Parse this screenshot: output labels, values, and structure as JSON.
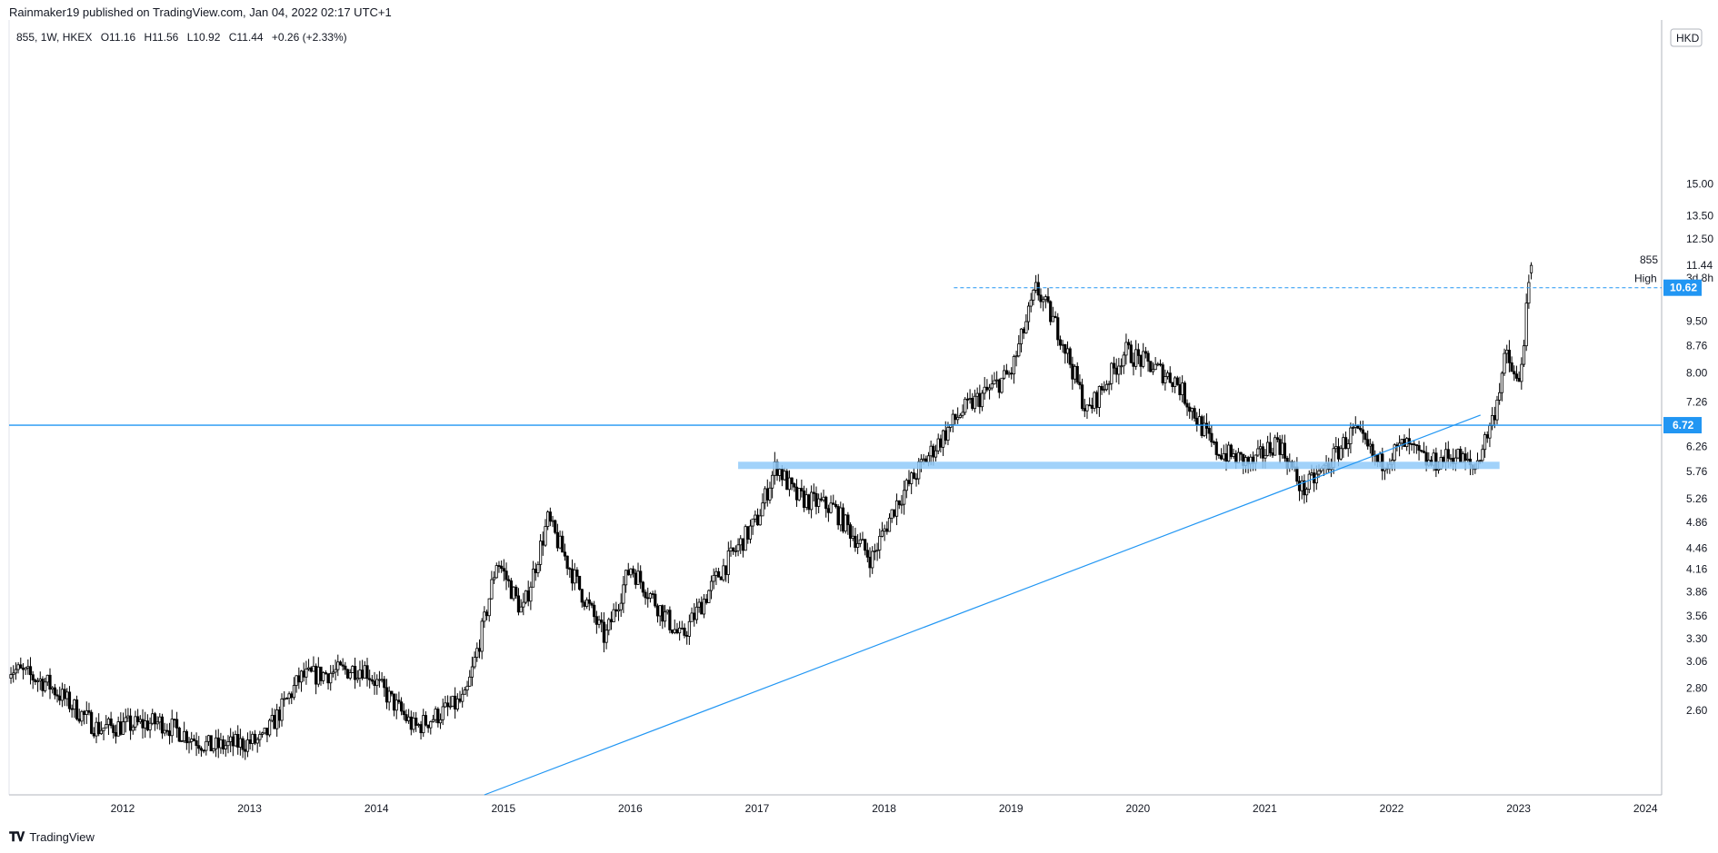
{
  "header": {
    "published_by": "Rainmaker19 published on TradingView.com, Jan 04, 2022 02:17 UTC+1"
  },
  "legend": {
    "symbol": "855, 1W, HKEX",
    "open": "O11.16",
    "high": "H11.56",
    "low": "L10.92",
    "close": "C11.44",
    "change": "+0.26 (+2.33%)"
  },
  "price_axis": {
    "currency": "HKD",
    "ticks": [
      "2.60",
      "2.80",
      "3.06",
      "3.30",
      "3.56",
      "3.86",
      "4.16",
      "4.46",
      "4.86",
      "5.26",
      "5.76",
      "6.26",
      "7.26",
      "8.00",
      "8.76",
      "9.50",
      "12.50",
      "13.50",
      "15.00"
    ],
    "last_price_label": "855",
    "last_price_value": "11.44",
    "time_to_close": "3d 8h",
    "high_label": "High",
    "high_value": "10.62",
    "resistance_value": "6.72"
  },
  "time_axis": {
    "ticks": [
      "2012",
      "2013",
      "2014",
      "2015",
      "2016",
      "2017",
      "2018",
      "2019",
      "2020",
      "2021",
      "2022",
      "2023",
      "2024"
    ]
  },
  "footer": {
    "brand": "TradingView"
  },
  "colors": {
    "accent": "#2196f3",
    "zone": "#90caf9",
    "candle": "#000000",
    "label_bg": "#2196f3"
  },
  "chart_data": {
    "type": "candlestick",
    "symbol": "855",
    "interval": "1W",
    "exchange": "HKEX",
    "currency": "HKD",
    "scale": "log",
    "ylim": [
      2.45,
      17.0
    ],
    "xlim": [
      2011.1,
      2024.1
    ],
    "series_keypoints": [
      {
        "x": 2011.1,
        "y": 3.0
      },
      {
        "x": 2011.4,
        "y": 2.85
      },
      {
        "x": 2011.8,
        "y": 2.45
      },
      {
        "x": 2012.3,
        "y": 2.5
      },
      {
        "x": 2012.7,
        "y": 2.3
      },
      {
        "x": 2013.1,
        "y": 2.35
      },
      {
        "x": 2013.4,
        "y": 2.9
      },
      {
        "x": 2013.9,
        "y": 3.0
      },
      {
        "x": 2014.3,
        "y": 2.45
      },
      {
        "x": 2014.7,
        "y": 2.7
      },
      {
        "x": 2014.85,
        "y": 3.5
      },
      {
        "x": 2014.95,
        "y": 4.3
      },
      {
        "x": 2015.15,
        "y": 3.6
      },
      {
        "x": 2015.35,
        "y": 4.9
      },
      {
        "x": 2015.6,
        "y": 3.9
      },
      {
        "x": 2015.8,
        "y": 3.3
      },
      {
        "x": 2016.0,
        "y": 4.2
      },
      {
        "x": 2016.4,
        "y": 3.3
      },
      {
        "x": 2016.7,
        "y": 4.1
      },
      {
        "x": 2017.0,
        "y": 4.9
      },
      {
        "x": 2017.15,
        "y": 5.9
      },
      {
        "x": 2017.3,
        "y": 5.3
      },
      {
        "x": 2017.6,
        "y": 5.1
      },
      {
        "x": 2017.9,
        "y": 4.3
      },
      {
        "x": 2018.1,
        "y": 5.2
      },
      {
        "x": 2018.3,
        "y": 5.9
      },
      {
        "x": 2018.6,
        "y": 7.0
      },
      {
        "x": 2019.0,
        "y": 8.0
      },
      {
        "x": 2019.2,
        "y": 10.6
      },
      {
        "x": 2019.4,
        "y": 9.0
      },
      {
        "x": 2019.6,
        "y": 7.0
      },
      {
        "x": 2019.9,
        "y": 8.6
      },
      {
        "x": 2020.3,
        "y": 7.8
      },
      {
        "x": 2020.6,
        "y": 6.2
      },
      {
        "x": 2020.9,
        "y": 5.9
      },
      {
        "x": 2021.1,
        "y": 6.4
      },
      {
        "x": 2021.3,
        "y": 5.4
      },
      {
        "x": 2021.5,
        "y": 5.9
      },
      {
        "x": 2021.7,
        "y": 6.6
      },
      {
        "x": 2021.9,
        "y": 5.9
      },
      {
        "x": 2022.1,
        "y": 6.3
      },
      {
        "x": 2022.3,
        "y": 5.9
      },
      {
        "x": 2022.5,
        "y": 6.1
      },
      {
        "x": 2022.65,
        "y": 5.8
      },
      {
        "x": 2022.8,
        "y": 6.9
      },
      {
        "x": 2022.9,
        "y": 8.5
      },
      {
        "x": 2023.0,
        "y": 7.6
      },
      {
        "x": 2023.05,
        "y": 9.3
      },
      {
        "x": 2023.1,
        "y": 11.44
      }
    ],
    "last": {
      "open": 11.16,
      "high": 11.56,
      "low": 10.92,
      "close": 11.44,
      "change": 0.26,
      "change_pct": 2.33
    },
    "annotations": [
      {
        "type": "horizontal_line",
        "value": 6.72,
        "label": "6.72"
      },
      {
        "type": "horizontal_dashed",
        "value": 10.62,
        "label": "High"
      },
      {
        "type": "zone",
        "from": 5.83,
        "to": 5.95
      },
      {
        "type": "trendline",
        "from": {
          "x": 2015.0,
          "y": 2.45
        },
        "to": {
          "x": 2023.8,
          "y": 6.95
        }
      }
    ]
  }
}
